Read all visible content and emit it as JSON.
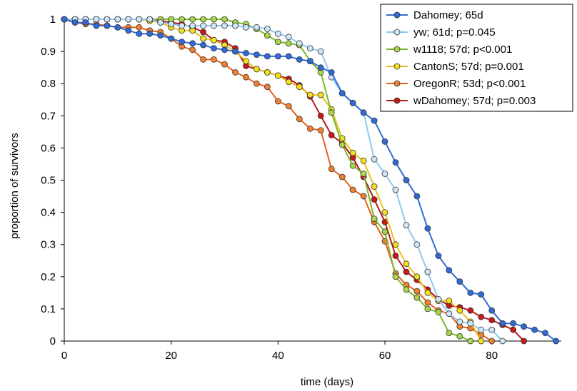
{
  "chart_data": {
    "type": "line",
    "xlabel": "time (days)",
    "ylabel": "proportion of survivors",
    "xlim": [
      0,
      93
    ],
    "ylim": [
      0,
      1
    ],
    "x_ticks": [
      0,
      20,
      40,
      60,
      80
    ],
    "y_ticks": [
      0,
      0.1,
      0.2,
      0.3,
      0.4,
      0.5,
      0.6,
      0.7,
      0.8,
      0.9,
      1
    ],
    "y_tick_labels": [
      "0",
      "0.1",
      "0.2",
      "0.3",
      "0.4",
      "0.5",
      "0.6",
      "0.7",
      "0.8",
      "0.9",
      "1"
    ],
    "grid": false,
    "legend_position": "top-right",
    "series": [
      {
        "name": "Dahomey; 65d",
        "color": "#2f6bd8",
        "fill": "#2f6bd8",
        "points": [
          [
            0,
            1
          ],
          [
            2,
            0.99
          ],
          [
            4,
            0.99
          ],
          [
            6,
            0.98
          ],
          [
            8,
            0.98
          ],
          [
            10,
            0.975
          ],
          [
            12,
            0.965
          ],
          [
            14,
            0.955
          ],
          [
            16,
            0.955
          ],
          [
            18,
            0.95
          ],
          [
            20,
            0.94
          ],
          [
            22,
            0.93
          ],
          [
            24,
            0.925
          ],
          [
            26,
            0.92
          ],
          [
            28,
            0.91
          ],
          [
            30,
            0.905
          ],
          [
            32,
            0.9
          ],
          [
            34,
            0.895
          ],
          [
            36,
            0.89
          ],
          [
            38,
            0.885
          ],
          [
            40,
            0.885
          ],
          [
            42,
            0.885
          ],
          [
            44,
            0.875
          ],
          [
            46,
            0.87
          ],
          [
            48,
            0.85
          ],
          [
            50,
            0.835
          ],
          [
            52,
            0.77
          ],
          [
            54,
            0.74
          ],
          [
            56,
            0.71
          ],
          [
            58,
            0.685
          ],
          [
            60,
            0.62
          ],
          [
            62,
            0.555
          ],
          [
            64,
            0.5
          ],
          [
            66,
            0.45
          ],
          [
            68,
            0.35
          ],
          [
            70,
            0.265
          ],
          [
            72,
            0.22
          ],
          [
            74,
            0.185
          ],
          [
            76,
            0.15
          ],
          [
            78,
            0.145
          ],
          [
            80,
            0.095
          ],
          [
            82,
            0.055
          ],
          [
            84,
            0.055
          ],
          [
            86,
            0.045
          ],
          [
            88,
            0.035
          ],
          [
            90,
            0.025
          ],
          [
            92,
            0
          ]
        ]
      },
      {
        "name": "yw; 61d; p=0.045",
        "color": "#8cc8f0",
        "fill": "#cfe6f8",
        "points": [
          [
            0,
            1
          ],
          [
            2,
            1
          ],
          [
            4,
            1
          ],
          [
            6,
            1
          ],
          [
            8,
            1
          ],
          [
            10,
            1
          ],
          [
            12,
            1
          ],
          [
            14,
            1
          ],
          [
            16,
            1
          ],
          [
            18,
            0.99
          ],
          [
            20,
            0.985
          ],
          [
            22,
            0.98
          ],
          [
            24,
            0.98
          ],
          [
            26,
            0.98
          ],
          [
            28,
            0.98
          ],
          [
            30,
            0.98
          ],
          [
            32,
            0.98
          ],
          [
            34,
            0.975
          ],
          [
            36,
            0.975
          ],
          [
            38,
            0.97
          ],
          [
            40,
            0.955
          ],
          [
            42,
            0.945
          ],
          [
            44,
            0.925
          ],
          [
            46,
            0.91
          ],
          [
            48,
            0.9
          ],
          [
            50,
            0.82
          ],
          [
            52,
            0.77
          ],
          [
            54,
            0.74
          ],
          [
            56,
            0.71
          ],
          [
            58,
            0.565
          ],
          [
            60,
            0.52
          ],
          [
            62,
            0.47
          ],
          [
            64,
            0.36
          ],
          [
            66,
            0.3
          ],
          [
            68,
            0.215
          ],
          [
            70,
            0.13
          ],
          [
            72,
            0.085
          ],
          [
            74,
            0.06
          ],
          [
            76,
            0.055
          ],
          [
            78,
            0.035
          ],
          [
            80,
            0.035
          ],
          [
            82,
            0
          ]
        ]
      },
      {
        "name": "w1118; 57d; p<0.001",
        "color": "#7ab82a",
        "fill": "#a7d648",
        "points": [
          [
            0,
            1
          ],
          [
            2,
            1
          ],
          [
            4,
            1
          ],
          [
            6,
            1
          ],
          [
            8,
            1
          ],
          [
            10,
            1
          ],
          [
            12,
            1
          ],
          [
            14,
            1
          ],
          [
            16,
            1
          ],
          [
            18,
            1
          ],
          [
            20,
            1
          ],
          [
            22,
            1
          ],
          [
            24,
            1
          ],
          [
            26,
            1
          ],
          [
            28,
            1
          ],
          [
            30,
            1
          ],
          [
            32,
            0.99
          ],
          [
            34,
            0.985
          ],
          [
            36,
            0.97
          ],
          [
            38,
            0.95
          ],
          [
            40,
            0.93
          ],
          [
            42,
            0.925
          ],
          [
            44,
            0.92
          ],
          [
            46,
            0.87
          ],
          [
            48,
            0.835
          ],
          [
            50,
            0.71
          ],
          [
            52,
            0.61
          ],
          [
            54,
            0.545
          ],
          [
            56,
            0.52
          ],
          [
            58,
            0.38
          ],
          [
            60,
            0.34
          ],
          [
            62,
            0.2
          ],
          [
            64,
            0.16
          ],
          [
            66,
            0.135
          ],
          [
            68,
            0.1
          ],
          [
            70,
            0.09
          ],
          [
            72,
            0.025
          ],
          [
            74,
            0.015
          ],
          [
            76,
            0
          ]
        ]
      },
      {
        "name": "CantonS; 57d; p=0.001",
        "color": "#e8c020",
        "fill": "#f5e020",
        "points": [
          [
            0,
            1
          ],
          [
            2,
            1
          ],
          [
            4,
            1
          ],
          [
            6,
            1
          ],
          [
            8,
            1
          ],
          [
            10,
            1
          ],
          [
            12,
            1
          ],
          [
            14,
            1
          ],
          [
            16,
            0.995
          ],
          [
            18,
            0.99
          ],
          [
            20,
            0.975
          ],
          [
            22,
            0.965
          ],
          [
            24,
            0.965
          ],
          [
            26,
            0.94
          ],
          [
            28,
            0.935
          ],
          [
            30,
            0.92
          ],
          [
            32,
            0.9
          ],
          [
            34,
            0.87
          ],
          [
            36,
            0.845
          ],
          [
            38,
            0.835
          ],
          [
            40,
            0.825
          ],
          [
            42,
            0.805
          ],
          [
            44,
            0.79
          ],
          [
            46,
            0.765
          ],
          [
            48,
            0.765
          ],
          [
            50,
            0.72
          ],
          [
            52,
            0.63
          ],
          [
            54,
            0.585
          ],
          [
            56,
            0.56
          ],
          [
            58,
            0.48
          ],
          [
            60,
            0.4
          ],
          [
            62,
            0.3
          ],
          [
            64,
            0.24
          ],
          [
            66,
            0.2
          ],
          [
            68,
            0.15
          ],
          [
            70,
            0.125
          ],
          [
            72,
            0.125
          ],
          [
            74,
            0.095
          ],
          [
            76,
            0.06
          ],
          [
            78,
            0
          ]
        ]
      },
      {
        "name": "OregonR; 53d; p<0.001",
        "color": "#e86018",
        "fill": "#f08030",
        "points": [
          [
            0,
            1
          ],
          [
            2,
            0.99
          ],
          [
            4,
            0.985
          ],
          [
            6,
            0.985
          ],
          [
            8,
            0.98
          ],
          [
            10,
            0.975
          ],
          [
            12,
            0.975
          ],
          [
            14,
            0.975
          ],
          [
            16,
            0.965
          ],
          [
            18,
            0.96
          ],
          [
            20,
            0.94
          ],
          [
            22,
            0.915
          ],
          [
            24,
            0.905
          ],
          [
            26,
            0.875
          ],
          [
            28,
            0.875
          ],
          [
            30,
            0.86
          ],
          [
            32,
            0.835
          ],
          [
            34,
            0.82
          ],
          [
            36,
            0.8
          ],
          [
            38,
            0.79
          ],
          [
            40,
            0.745
          ],
          [
            42,
            0.73
          ],
          [
            44,
            0.69
          ],
          [
            46,
            0.66
          ],
          [
            48,
            0.655
          ],
          [
            50,
            0.535
          ],
          [
            52,
            0.51
          ],
          [
            54,
            0.47
          ],
          [
            56,
            0.45
          ],
          [
            58,
            0.37
          ],
          [
            60,
            0.31
          ],
          [
            62,
            0.21
          ],
          [
            64,
            0.175
          ],
          [
            66,
            0.155
          ],
          [
            68,
            0.12
          ],
          [
            70,
            0.095
          ],
          [
            72,
            0.085
          ],
          [
            74,
            0.045
          ],
          [
            76,
            0.04
          ],
          [
            78,
            0.02
          ],
          [
            80,
            0
          ]
        ]
      },
      {
        "name": "wDahomey; 57d; p=0.003",
        "color": "#b81818",
        "fill": "#c81818",
        "points": [
          [
            0,
            1
          ],
          [
            2,
            1
          ],
          [
            4,
            1
          ],
          [
            6,
            1
          ],
          [
            8,
            1
          ],
          [
            10,
            1
          ],
          [
            12,
            1
          ],
          [
            14,
            1
          ],
          [
            16,
            1
          ],
          [
            18,
            0.995
          ],
          [
            20,
            0.99
          ],
          [
            22,
            0.985
          ],
          [
            24,
            0.975
          ],
          [
            26,
            0.96
          ],
          [
            28,
            0.935
          ],
          [
            30,
            0.93
          ],
          [
            32,
            0.91
          ],
          [
            34,
            0.855
          ],
          [
            36,
            0.845
          ],
          [
            38,
            0.835
          ],
          [
            40,
            0.825
          ],
          [
            42,
            0.815
          ],
          [
            44,
            0.795
          ],
          [
            46,
            0.76
          ],
          [
            48,
            0.7
          ],
          [
            50,
            0.64
          ],
          [
            52,
            0.615
          ],
          [
            54,
            0.57
          ],
          [
            56,
            0.51
          ],
          [
            58,
            0.44
          ],
          [
            60,
            0.37
          ],
          [
            62,
            0.265
          ],
          [
            64,
            0.215
          ],
          [
            66,
            0.19
          ],
          [
            68,
            0.16
          ],
          [
            70,
            0.13
          ],
          [
            72,
            0.11
          ],
          [
            74,
            0.105
          ],
          [
            76,
            0.095
          ],
          [
            78,
            0.075
          ],
          [
            80,
            0.065
          ],
          [
            82,
            0.05
          ],
          [
            84,
            0.035
          ],
          [
            86,
            0
          ]
        ]
      }
    ]
  }
}
